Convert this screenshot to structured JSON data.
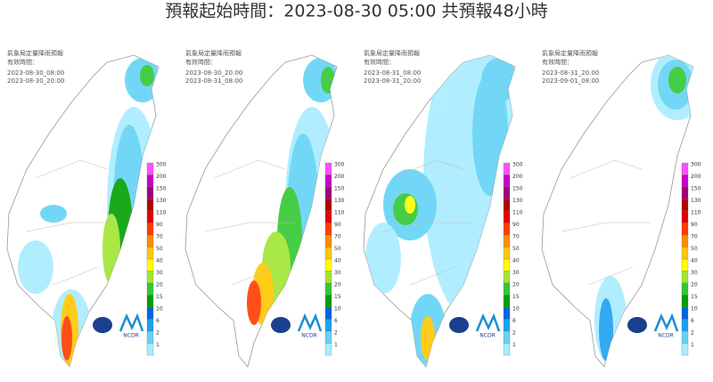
{
  "title": "預報起始時間：2023-08-30 05:00  共預報48小時",
  "panels": [
    {
      "header": "氣象局定量降雨預報",
      "valid_label": "有效時間：",
      "start": "2023-08-30_08:00",
      "end": "2023-08-30_20:00"
    },
    {
      "header": "氣象局定量降雨預報",
      "valid_label": "有效時間：",
      "start": "2023-08-30_20:00",
      "end": "2023-08-31_08:00"
    },
    {
      "header": "氣象局定量降雨預報",
      "valid_label": "有效時間：",
      "start": "2023-08-31_08:00",
      "end": "2023-08-31_20:00"
    },
    {
      "header": "氣象局定量降雨預報",
      "valid_label": "有效時間：",
      "start": "2023-08-31_20:00",
      "end": "2023-09-01_08:00"
    }
  ],
  "legend": [
    300,
    200,
    150,
    130,
    110,
    90,
    70,
    50,
    40,
    30,
    20,
    15,
    10,
    6,
    2,
    1
  ],
  "logo": "NCDR"
}
